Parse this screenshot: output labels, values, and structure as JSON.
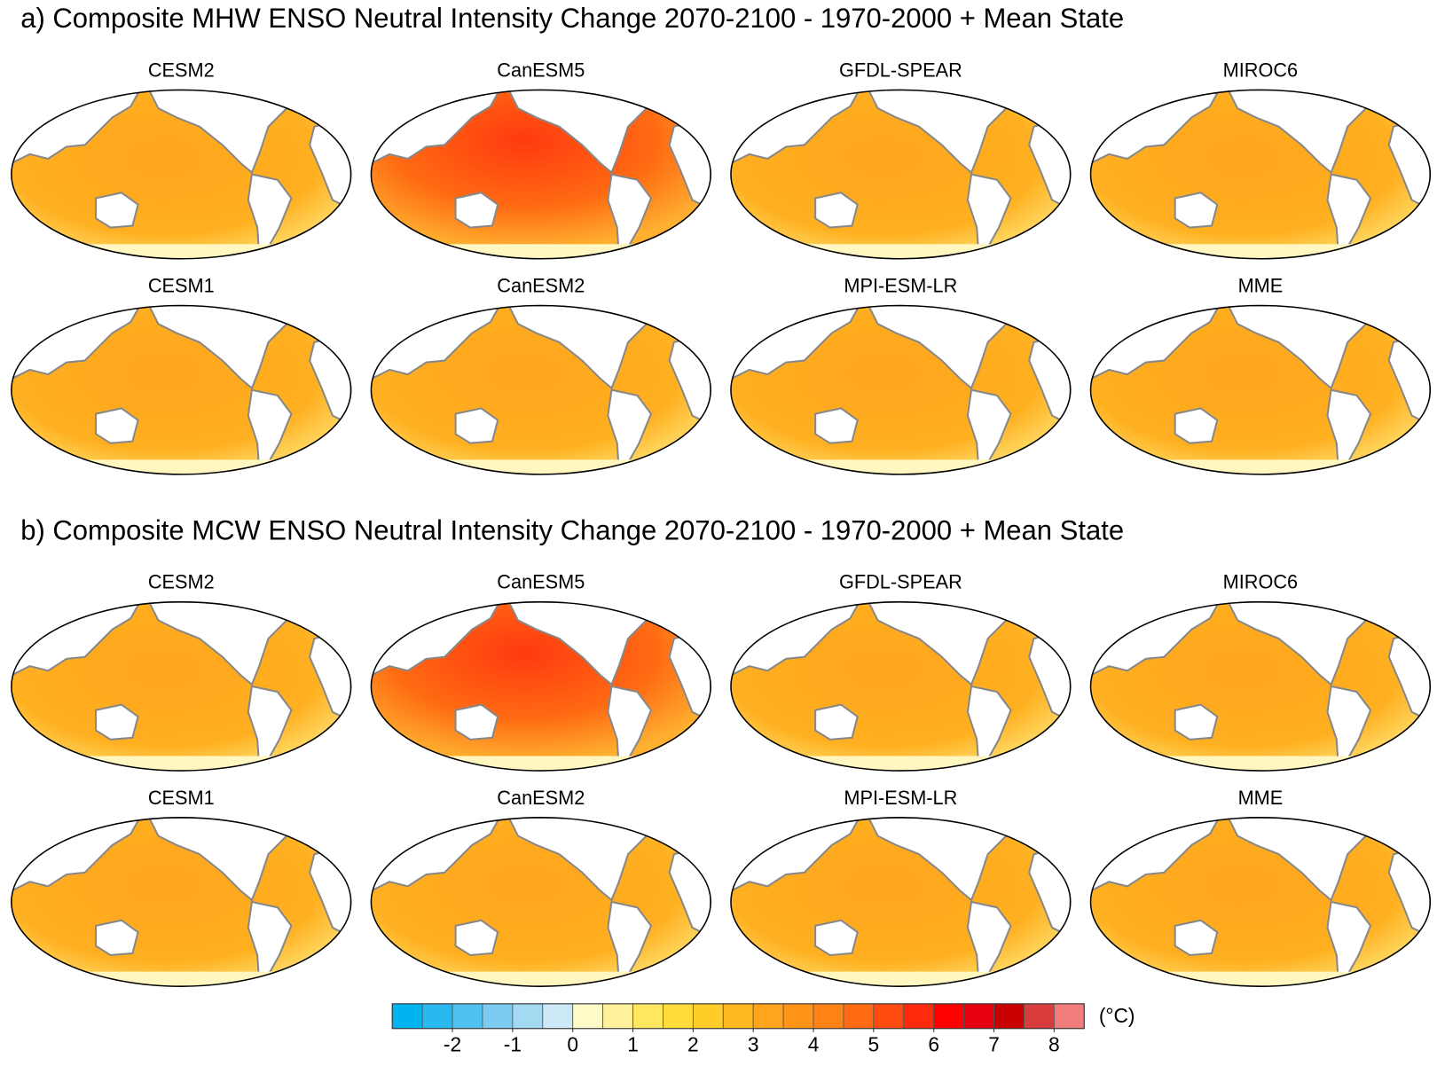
{
  "sections": [
    {
      "title": "a) Composite MHW ENSO Neutral Intensity Change 2070-2100 - 1970-2000 + Mean State",
      "panels": [
        "CESM2",
        "CanESM5",
        "GFDL-SPEAR",
        "MIROC6",
        "CESM1",
        "CanESM2",
        "MPI-ESM-LR",
        "MME"
      ]
    },
    {
      "title": "b) Composite MCW ENSO Neutral Intensity Change 2070-2100 - 1970-2000 + Mean State",
      "panels": [
        "CESM2",
        "CanESM5",
        "GFDL-SPEAR",
        "MIROC6",
        "CESM1",
        "CanESM2",
        "MPI-ESM-LR",
        "MME"
      ]
    }
  ],
  "colorbar": {
    "range": [
      -3,
      8.5
    ],
    "ticks": [
      -2,
      -1,
      0,
      1,
      2,
      3,
      4,
      5,
      6,
      7,
      8
    ],
    "unit": "(°C)",
    "colors": [
      "#00b4f0",
      "#28b9f0",
      "#50c2f0",
      "#7ccbf0",
      "#a4d9f2",
      "#cbe9f6",
      "#fffbc8",
      "#fff29a",
      "#ffe860",
      "#ffdc3a",
      "#ffcc28",
      "#ffb820",
      "#ffa41c",
      "#ff9418",
      "#ff8214",
      "#ff6a12",
      "#ff4a10",
      "#ff2a0c",
      "#ff0000",
      "#e60010",
      "#c80000",
      "#d83c3c",
      "#f07c7c"
    ]
  }
}
